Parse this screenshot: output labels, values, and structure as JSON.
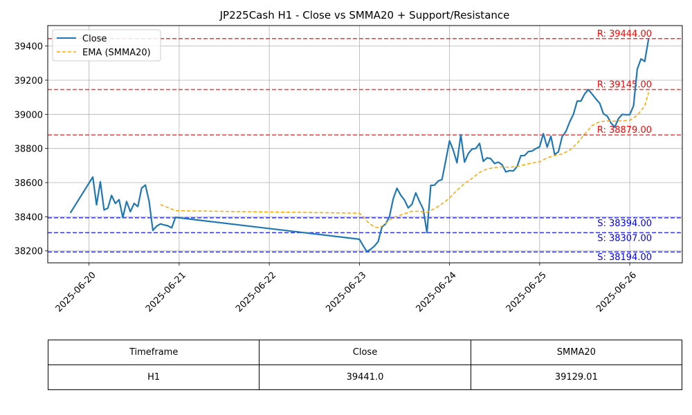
{
  "chart_data": {
    "type": "line",
    "title": "JP225Cash H1 - Close vs SMMA20 + Support/Resistance",
    "xlabel": "",
    "ylabel": "",
    "ylim": [
      38130,
      39520
    ],
    "x_range": [
      "2025-06-19T13:00",
      "2025-06-26T14:00"
    ],
    "x_ticks": [
      "2025-06-20",
      "2025-06-21",
      "2025-06-22",
      "2025-06-23",
      "2025-06-24",
      "2025-06-25",
      "2025-06-26"
    ],
    "y_ticks": [
      38200,
      38400,
      38600,
      38800,
      39000,
      39200,
      39400
    ],
    "grid": true,
    "legend_position": "top-left",
    "series": [
      {
        "name": "Close",
        "color": "#1f77b4",
        "style": "solid",
        "points": [
          [
            "2025-06-19T19:00",
            38422
          ],
          [
            "2025-06-20T01:00",
            38633
          ],
          [
            "2025-06-20T02:00",
            38470
          ],
          [
            "2025-06-20T03:00",
            38605
          ],
          [
            "2025-06-20T04:00",
            38440
          ],
          [
            "2025-06-20T05:00",
            38450
          ],
          [
            "2025-06-20T06:00",
            38525
          ],
          [
            "2025-06-20T07:00",
            38478
          ],
          [
            "2025-06-20T08:00",
            38500
          ],
          [
            "2025-06-20T09:00",
            38395
          ],
          [
            "2025-06-20T10:00",
            38490
          ],
          [
            "2025-06-20T11:00",
            38430
          ],
          [
            "2025-06-20T12:00",
            38478
          ],
          [
            "2025-06-20T13:00",
            38460
          ],
          [
            "2025-06-20T14:00",
            38568
          ],
          [
            "2025-06-20T15:00",
            38586
          ],
          [
            "2025-06-20T16:00",
            38490
          ],
          [
            "2025-06-20T17:00",
            38320
          ],
          [
            "2025-06-20T18:00",
            38345
          ],
          [
            "2025-06-20T19:00",
            38358
          ],
          [
            "2025-06-20T20:00",
            38352
          ],
          [
            "2025-06-20T21:00",
            38347
          ],
          [
            "2025-06-20T22:00",
            38335
          ],
          [
            "2025-06-20T23:00",
            38396
          ],
          [
            "2025-06-21T00:00",
            38394
          ],
          [
            "2025-06-23T00:00",
            38268
          ],
          [
            "2025-06-23T01:00",
            38230
          ],
          [
            "2025-06-23T02:00",
            38196
          ],
          [
            "2025-06-23T03:00",
            38210
          ],
          [
            "2025-06-23T04:00",
            38228
          ],
          [
            "2025-06-23T05:00",
            38255
          ],
          [
            "2025-06-23T06:00",
            38340
          ],
          [
            "2025-06-23T07:00",
            38358
          ],
          [
            "2025-06-23T08:00",
            38400
          ],
          [
            "2025-06-23T09:00",
            38505
          ],
          [
            "2025-06-23T10:00",
            38567
          ],
          [
            "2025-06-23T11:00",
            38527
          ],
          [
            "2025-06-23T12:00",
            38498
          ],
          [
            "2025-06-23T13:00",
            38452
          ],
          [
            "2025-06-23T14:00",
            38473
          ],
          [
            "2025-06-23T15:00",
            38540
          ],
          [
            "2025-06-23T16:00",
            38490
          ],
          [
            "2025-06-23T17:00",
            38445
          ],
          [
            "2025-06-23T18:00",
            38307
          ],
          [
            "2025-06-23T19:00",
            38584
          ],
          [
            "2025-06-23T20:00",
            38585
          ],
          [
            "2025-06-23T21:00",
            38610
          ],
          [
            "2025-06-23T22:00",
            38618
          ],
          [
            "2025-06-23T23:00",
            38730
          ],
          [
            "2025-06-24T00:00",
            38845
          ],
          [
            "2025-06-24T01:00",
            38790
          ],
          [
            "2025-06-24T02:00",
            38716
          ],
          [
            "2025-06-24T03:00",
            38880
          ],
          [
            "2025-06-24T04:00",
            38720
          ],
          [
            "2025-06-24T05:00",
            38770
          ],
          [
            "2025-06-24T06:00",
            38797
          ],
          [
            "2025-06-24T07:00",
            38800
          ],
          [
            "2025-06-24T08:00",
            38830
          ],
          [
            "2025-06-24T09:00",
            38725
          ],
          [
            "2025-06-24T10:00",
            38745
          ],
          [
            "2025-06-24T11:00",
            38740
          ],
          [
            "2025-06-24T12:00",
            38712
          ],
          [
            "2025-06-24T13:00",
            38720
          ],
          [
            "2025-06-24T14:00",
            38705
          ],
          [
            "2025-06-24T15:00",
            38663
          ],
          [
            "2025-06-24T16:00",
            38670
          ],
          [
            "2025-06-24T17:00",
            38668
          ],
          [
            "2025-06-24T18:00",
            38695
          ],
          [
            "2025-06-24T19:00",
            38758
          ],
          [
            "2025-06-24T20:00",
            38758
          ],
          [
            "2025-06-24T21:00",
            38782
          ],
          [
            "2025-06-24T22:00",
            38785
          ],
          [
            "2025-06-24T23:00",
            38800
          ],
          [
            "2025-06-25T00:00",
            38810
          ],
          [
            "2025-06-25T01:00",
            38887
          ],
          [
            "2025-06-25T02:00",
            38808
          ],
          [
            "2025-06-25T03:00",
            38872
          ],
          [
            "2025-06-25T04:00",
            38765
          ],
          [
            "2025-06-25T05:00",
            38780
          ],
          [
            "2025-06-25T06:00",
            38870
          ],
          [
            "2025-06-25T07:00",
            38900
          ],
          [
            "2025-06-25T08:00",
            38955
          ],
          [
            "2025-06-25T09:00",
            39000
          ],
          [
            "2025-06-25T10:00",
            39078
          ],
          [
            "2025-06-25T11:00",
            39078
          ],
          [
            "2025-06-25T12:00",
            39120
          ],
          [
            "2025-06-25T13:00",
            39145
          ],
          [
            "2025-06-25T14:00",
            39118
          ],
          [
            "2025-06-25T15:00",
            39090
          ],
          [
            "2025-06-25T16:00",
            39065
          ],
          [
            "2025-06-25T17:00",
            39003
          ],
          [
            "2025-06-25T18:00",
            38990
          ],
          [
            "2025-06-25T19:00",
            38950
          ],
          [
            "2025-06-25T20:00",
            38925
          ],
          [
            "2025-06-25T21:00",
            38975
          ],
          [
            "2025-06-25T22:00",
            39000
          ],
          [
            "2025-06-25T23:00",
            38998
          ],
          [
            "2025-06-26T00:00",
            38998
          ],
          [
            "2025-06-26T01:00",
            39050
          ],
          [
            "2025-06-26T02:00",
            39265
          ],
          [
            "2025-06-26T03:00",
            39325
          ],
          [
            "2025-06-26T04:00",
            39310
          ],
          [
            "2025-06-26T05:00",
            39441
          ]
        ]
      },
      {
        "name": "EMA (SMMA20)",
        "color": "#ffa500",
        "style": "dashed",
        "points": [
          [
            "2025-06-20T19:00",
            38472
          ],
          [
            "2025-06-20T23:00",
            38436
          ],
          [
            "2025-06-21T00:00",
            38435
          ],
          [
            "2025-06-23T00:00",
            38421
          ],
          [
            "2025-06-23T01:00",
            38400
          ],
          [
            "2025-06-23T02:00",
            38375
          ],
          [
            "2025-06-23T03:00",
            38355
          ],
          [
            "2025-06-23T04:00",
            38342
          ],
          [
            "2025-06-23T05:00",
            38336
          ],
          [
            "2025-06-23T06:00",
            38345
          ],
          [
            "2025-06-23T07:00",
            38360
          ],
          [
            "2025-06-23T08:00",
            38380
          ],
          [
            "2025-06-23T09:00",
            38396
          ],
          [
            "2025-06-23T10:00",
            38402
          ],
          [
            "2025-06-23T12:00",
            38418
          ],
          [
            "2025-06-23T14:00",
            38432
          ],
          [
            "2025-06-23T16:00",
            38432
          ],
          [
            "2025-06-23T18:00",
            38425
          ],
          [
            "2025-06-23T20:00",
            38448
          ],
          [
            "2025-06-23T22:00",
            38475
          ],
          [
            "2025-06-24T00:00",
            38510
          ],
          [
            "2025-06-24T02:00",
            38555
          ],
          [
            "2025-06-24T04:00",
            38595
          ],
          [
            "2025-06-24T06:00",
            38625
          ],
          [
            "2025-06-24T08:00",
            38660
          ],
          [
            "2025-06-24T10:00",
            38680
          ],
          [
            "2025-06-24T12:00",
            38688
          ],
          [
            "2025-06-24T14:00",
            38692
          ],
          [
            "2025-06-24T16:00",
            38690
          ],
          [
            "2025-06-24T18:00",
            38695
          ],
          [
            "2025-06-24T20:00",
            38705
          ],
          [
            "2025-06-24T22:00",
            38715
          ],
          [
            "2025-06-25T00:00",
            38722
          ],
          [
            "2025-06-25T02:00",
            38745
          ],
          [
            "2025-06-25T04:00",
            38758
          ],
          [
            "2025-06-25T06:00",
            38768
          ],
          [
            "2025-06-25T08:00",
            38790
          ],
          [
            "2025-06-25T10:00",
            38830
          ],
          [
            "2025-06-25T12:00",
            38885
          ],
          [
            "2025-06-25T14:00",
            38935
          ],
          [
            "2025-06-25T16:00",
            38957
          ],
          [
            "2025-06-25T18:00",
            38962
          ],
          [
            "2025-06-25T20:00",
            38960
          ],
          [
            "2025-06-25T22:00",
            38962
          ],
          [
            "2025-06-26T00:00",
            38965
          ],
          [
            "2025-06-26T02:00",
            38995
          ],
          [
            "2025-06-26T04:00",
            39050
          ],
          [
            "2025-06-26T05:00",
            39129
          ]
        ]
      }
    ],
    "resistance_levels": [
      {
        "label": "R: 39444.00",
        "value": 39444.0
      },
      {
        "label": "R: 39145.00",
        "value": 39145.0
      },
      {
        "label": "R: 38879.00",
        "value": 38879.0
      }
    ],
    "support_levels": [
      {
        "label": "S: 38394.00",
        "value": 38394.0
      },
      {
        "label": "S: 38307.00",
        "value": 38307.0
      },
      {
        "label": "S: 38194.00",
        "value": 38194.0
      }
    ],
    "resistance_color": "#ff0000",
    "support_color": "#0000ff"
  },
  "table": {
    "headers": [
      "Timeframe",
      "Close",
      "SMMA20"
    ],
    "row": [
      "H1",
      "39441.0",
      "39129.01"
    ]
  }
}
